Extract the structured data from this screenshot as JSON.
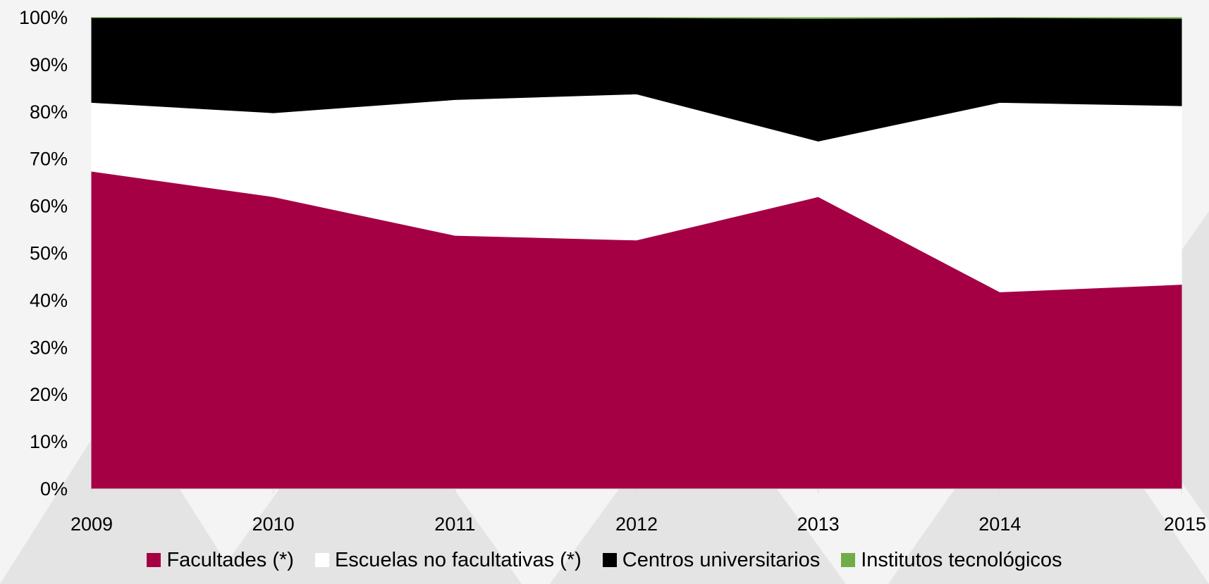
{
  "chart_data": {
    "type": "area",
    "stacked": true,
    "normalized_percent": true,
    "x": [
      "2009",
      "2010",
      "2011",
      "2012",
      "2013",
      "2014",
      "2015"
    ],
    "y_ticks": [
      "0%",
      "10%",
      "20%",
      "30%",
      "40%",
      "50%",
      "60%",
      "70%",
      "80%",
      "90%",
      "100%"
    ],
    "ylim": [
      0,
      100
    ],
    "grid": false,
    "legend_position": "bottom",
    "series": [
      {
        "name": "Facultades (*)",
        "color": "#a50044",
        "values": [
          67.4,
          62.0,
          53.8,
          52.8,
          62.0,
          41.8,
          43.4
        ]
      },
      {
        "name": "Escuelas no facultativas (*)",
        "color": "#ffffff",
        "values": [
          14.6,
          17.8,
          28.8,
          31.0,
          11.8,
          40.2,
          37.9
        ]
      },
      {
        "name": "Centros universitarios",
        "color": "#000000",
        "values": [
          18.0,
          20.2,
          17.4,
          16.2,
          26.0,
          18.0,
          18.5
        ]
      },
      {
        "name": "Institutos tecnológicos",
        "color": "#70ad47",
        "values": [
          0.0,
          0.0,
          0.0,
          0.0,
          0.2,
          0.0,
          0.2
        ]
      }
    ],
    "title": "",
    "xlabel": "",
    "ylabel": ""
  }
}
